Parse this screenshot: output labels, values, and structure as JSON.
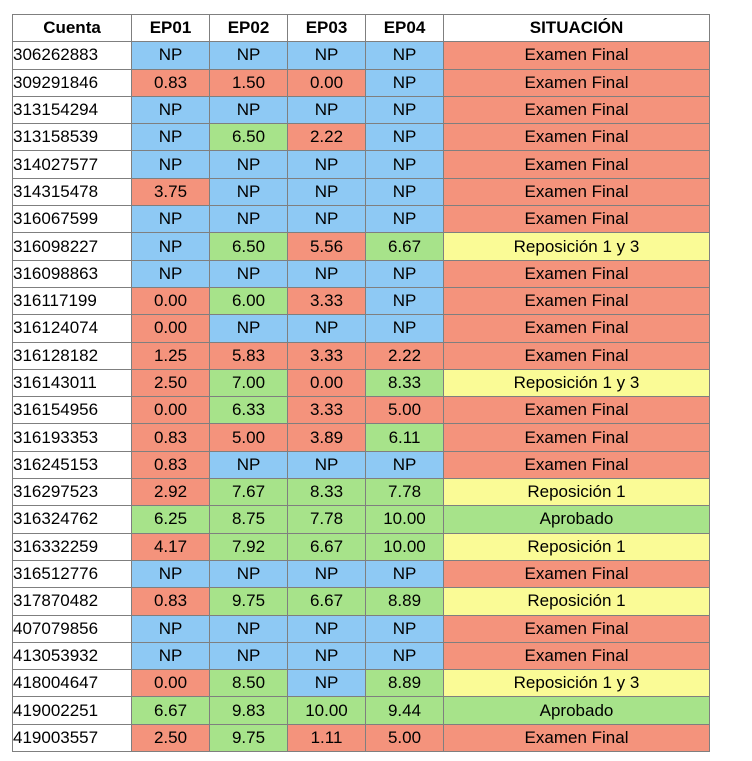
{
  "table": {
    "headers": [
      "Cuenta",
      "EP01",
      "EP02",
      "EP03",
      "EP04",
      "SITUACIÓN"
    ],
    "rows": [
      {
        "cuenta": "306262883",
        "scores": [
          "NP",
          "NP",
          "NP",
          "NP"
        ],
        "situacion": "Examen Final"
      },
      {
        "cuenta": "309291846",
        "scores": [
          "0.83",
          "1.50",
          "0.00",
          "NP"
        ],
        "situacion": "Examen Final"
      },
      {
        "cuenta": "313154294",
        "scores": [
          "NP",
          "NP",
          "NP",
          "NP"
        ],
        "situacion": "Examen Final"
      },
      {
        "cuenta": "313158539",
        "scores": [
          "NP",
          "6.50",
          "2.22",
          "NP"
        ],
        "situacion": "Examen Final"
      },
      {
        "cuenta": "314027577",
        "scores": [
          "NP",
          "NP",
          "NP",
          "NP"
        ],
        "situacion": "Examen Final"
      },
      {
        "cuenta": "314315478",
        "scores": [
          "3.75",
          "NP",
          "NP",
          "NP"
        ],
        "situacion": "Examen Final"
      },
      {
        "cuenta": "316067599",
        "scores": [
          "NP",
          "NP",
          "NP",
          "NP"
        ],
        "situacion": "Examen Final"
      },
      {
        "cuenta": "316098227",
        "scores": [
          "NP",
          "6.50",
          "5.56",
          "6.67"
        ],
        "situacion": "Reposición 1 y 3"
      },
      {
        "cuenta": "316098863",
        "scores": [
          "NP",
          "NP",
          "NP",
          "NP"
        ],
        "situacion": "Examen Final"
      },
      {
        "cuenta": "316117199",
        "scores": [
          "0.00",
          "6.00",
          "3.33",
          "NP"
        ],
        "situacion": "Examen Final"
      },
      {
        "cuenta": "316124074",
        "scores": [
          "0.00",
          "NP",
          "NP",
          "NP"
        ],
        "situacion": "Examen Final"
      },
      {
        "cuenta": "316128182",
        "scores": [
          "1.25",
          "5.83",
          "3.33",
          "2.22"
        ],
        "situacion": "Examen Final"
      },
      {
        "cuenta": "316143011",
        "scores": [
          "2.50",
          "7.00",
          "0.00",
          "8.33"
        ],
        "situacion": "Reposición 1 y 3"
      },
      {
        "cuenta": "316154956",
        "scores": [
          "0.00",
          "6.33",
          "3.33",
          "5.00"
        ],
        "situacion": "Examen Final"
      },
      {
        "cuenta": "316193353",
        "scores": [
          "0.83",
          "5.00",
          "3.89",
          "6.11"
        ],
        "situacion": "Examen Final"
      },
      {
        "cuenta": "316245153",
        "scores": [
          "0.83",
          "NP",
          "NP",
          "NP"
        ],
        "situacion": "Examen Final"
      },
      {
        "cuenta": "316297523",
        "scores": [
          "2.92",
          "7.67",
          "8.33",
          "7.78"
        ],
        "situacion": "Reposición 1"
      },
      {
        "cuenta": "316324762",
        "scores": [
          "6.25",
          "8.75",
          "7.78",
          "10.00"
        ],
        "situacion": "Aprobado"
      },
      {
        "cuenta": "316332259",
        "scores": [
          "4.17",
          "7.92",
          "6.67",
          "10.00"
        ],
        "situacion": "Reposición 1"
      },
      {
        "cuenta": "316512776",
        "scores": [
          "NP",
          "NP",
          "NP",
          "NP"
        ],
        "situacion": "Examen Final"
      },
      {
        "cuenta": "317870482",
        "scores": [
          "0.83",
          "9.75",
          "6.67",
          "8.89"
        ],
        "situacion": "Reposición 1"
      },
      {
        "cuenta": "407079856",
        "scores": [
          "NP",
          "NP",
          "NP",
          "NP"
        ],
        "situacion": "Examen Final"
      },
      {
        "cuenta": "413053932",
        "scores": [
          "NP",
          "NP",
          "NP",
          "NP"
        ],
        "situacion": "Examen Final"
      },
      {
        "cuenta": "418004647",
        "scores": [
          "0.00",
          "8.50",
          "NP",
          "8.89"
        ],
        "situacion": "Reposición 1 y 3"
      },
      {
        "cuenta": "419002251",
        "scores": [
          "6.67",
          "9.83",
          "10.00",
          "9.44"
        ],
        "situacion": "Aprobado"
      },
      {
        "cuenta": "419003557",
        "scores": [
          "2.50",
          "9.75",
          "1.11",
          "5.00"
        ],
        "situacion": "Examen Final"
      }
    ]
  },
  "colors": {
    "np": "#8ec9f4",
    "low": "#f4937c",
    "pass": "#a7e38a",
    "examen_final": "#f4937c",
    "reposicion": "#fafb96",
    "aprobado": "#a7e38a"
  }
}
